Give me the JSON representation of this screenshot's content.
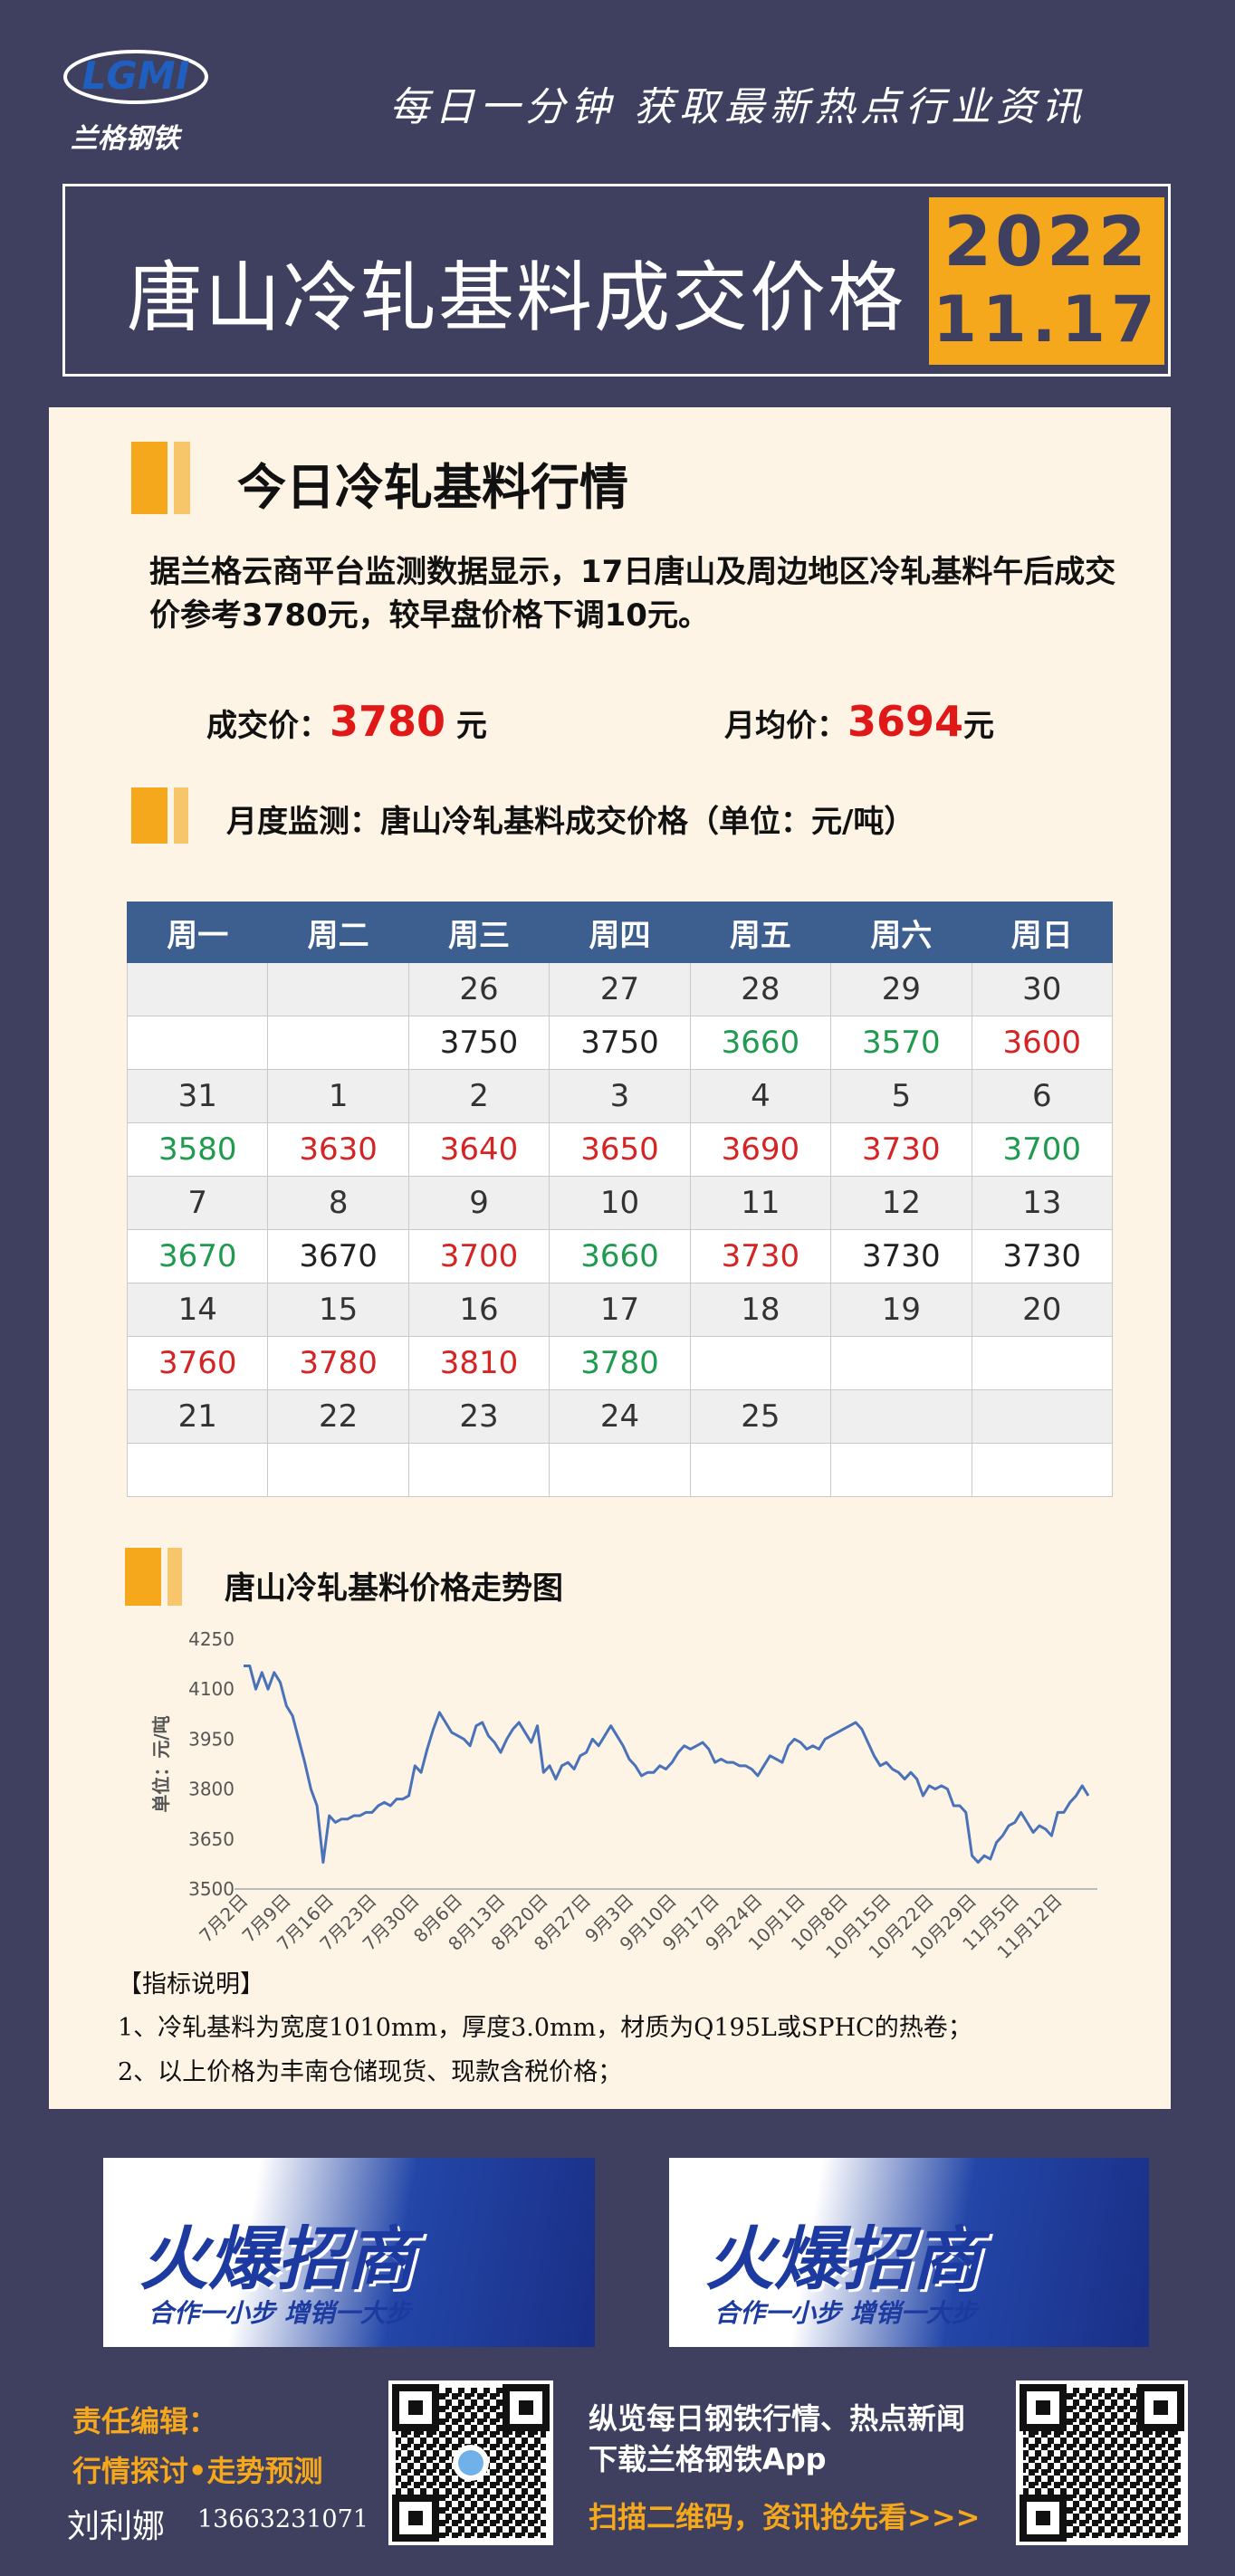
{
  "header": {
    "logo": "LGMI",
    "brand": "兰格钢铁",
    "slogan": "每日一分钟  获取最新热点行业资讯",
    "title": "唐山冷轧基料成交价格",
    "year": "2022",
    "date": "11.17"
  },
  "market": {
    "heading": "今日冷轧基料行情",
    "paragraph": "据兰格云商平台监测数据显示，17日唐山及周边地区冷轧基料午后成交价参考3780元，较早盘价格下调10元。",
    "deal_label": "成交价：",
    "deal_value": 3780,
    "deal_unit": "元",
    "avg_label": "月均价：",
    "avg_value": 3694,
    "avg_unit": "元"
  },
  "monitor": {
    "heading": "月度监测：唐山冷轧基料成交价格（单位：元/吨）",
    "headers": [
      "周一",
      "周二",
      "周三",
      "周四",
      "周五",
      "周六",
      "周日"
    ],
    "weeks": [
      {
        "days": [
          null,
          null,
          26,
          27,
          28,
          29,
          30
        ],
        "prices": [
          null,
          null,
          3750,
          3750,
          3660,
          3570,
          3600
        ],
        "colors": [
          null,
          null,
          "#222222",
          "#222222",
          "#1f9a4e",
          "#1f9a4e",
          "#d42424"
        ]
      },
      {
        "days": [
          31,
          1,
          2,
          3,
          4,
          5,
          6
        ],
        "prices": [
          3580,
          3630,
          3640,
          3650,
          3690,
          3730,
          3700
        ],
        "colors": [
          "#1f9a4e",
          "#d42424",
          "#d42424",
          "#d42424",
          "#d42424",
          "#d42424",
          "#1f9a4e"
        ]
      },
      {
        "days": [
          7,
          8,
          9,
          10,
          11,
          12,
          13
        ],
        "prices": [
          3670,
          3670,
          3700,
          3660,
          3730,
          3730,
          3730
        ],
        "colors": [
          "#1f9a4e",
          "#222222",
          "#d42424",
          "#1f9a4e",
          "#d42424",
          "#222222",
          "#222222"
        ]
      },
      {
        "days": [
          14,
          15,
          16,
          17,
          18,
          19,
          20
        ],
        "prices": [
          3760,
          3780,
          3810,
          3780,
          null,
          null,
          null
        ],
        "colors": [
          "#d42424",
          "#d42424",
          "#d42424",
          "#1f9a4e",
          null,
          null,
          null
        ]
      },
      {
        "days": [
          21,
          22,
          23,
          24,
          25,
          null,
          null
        ],
        "prices": [
          null,
          null,
          null,
          null,
          null,
          null,
          null
        ],
        "colors": [
          null,
          null,
          null,
          null,
          null,
          null,
          null
        ]
      }
    ]
  },
  "chart_data": {
    "type": "line",
    "title": "唐山冷轧基料价格走势图",
    "y_label": "单位：元/吨",
    "categories": [
      "7月2日",
      null,
      null,
      null,
      null,
      null,
      null,
      "7月9日",
      null,
      null,
      null,
      null,
      null,
      null,
      "7月16日",
      null,
      null,
      null,
      null,
      null,
      null,
      "7月23日",
      null,
      null,
      null,
      null,
      null,
      null,
      "7月30日",
      null,
      null,
      null,
      null,
      null,
      null,
      "8月6日",
      null,
      null,
      null,
      null,
      null,
      null,
      "8月13日",
      null,
      null,
      null,
      null,
      null,
      null,
      "8月20日",
      null,
      null,
      null,
      null,
      null,
      null,
      "8月27日",
      null,
      null,
      null,
      null,
      null,
      null,
      "9月3日",
      null,
      null,
      null,
      null,
      null,
      null,
      "9月10日",
      null,
      null,
      null,
      null,
      null,
      null,
      "9月17日",
      null,
      null,
      null,
      null,
      null,
      null,
      "9月24日",
      null,
      null,
      null,
      null,
      null,
      null,
      "10月1日",
      null,
      null,
      null,
      null,
      null,
      null,
      "10月8日",
      null,
      null,
      null,
      null,
      null,
      null,
      "10月15日",
      null,
      null,
      null,
      null,
      null,
      null,
      "10月22日",
      null,
      null,
      null,
      null,
      null,
      null,
      "10月29日",
      null,
      null,
      null,
      null,
      null,
      null,
      "11月5日",
      null,
      null,
      null,
      null,
      null,
      null,
      "11月12日",
      null,
      null,
      null,
      null,
      null
    ],
    "series": [
      {
        "name": "唐山冷轧基料",
        "color": "#4a72b8",
        "values": [
          4170,
          4170,
          4100,
          4150,
          4100,
          4150,
          4120,
          4050,
          4020,
          3950,
          3880,
          3800,
          3750,
          3580,
          3720,
          3700,
          3710,
          3710,
          3720,
          3720,
          3730,
          3730,
          3750,
          3760,
          3750,
          3770,
          3770,
          3780,
          3870,
          3850,
          3920,
          3980,
          4030,
          4000,
          3970,
          3960,
          3950,
          3930,
          3990,
          4000,
          3960,
          3940,
          3910,
          3950,
          3980,
          4000,
          3970,
          3940,
          3990,
          3850,
          3870,
          3830,
          3870,
          3880,
          3860,
          3900,
          3910,
          3950,
          3930,
          3960,
          3990,
          3960,
          3930,
          3890,
          3870,
          3840,
          3850,
          3850,
          3870,
          3860,
          3880,
          3910,
          3930,
          3920,
          3930,
          3940,
          3920,
          3880,
          3890,
          3880,
          3880,
          3870,
          3870,
          3860,
          3840,
          3870,
          3900,
          3890,
          3880,
          3930,
          3950,
          3940,
          3920,
          3930,
          3920,
          3950,
          3960,
          3970,
          3980,
          3990,
          4000,
          3980,
          3940,
          3900,
          3870,
          3880,
          3860,
          3850,
          3830,
          3850,
          3830,
          3780,
          3810,
          3800,
          3810,
          3800,
          3750,
          3750,
          3730,
          3600,
          3580,
          3600,
          3590,
          3640,
          3660,
          3690,
          3700,
          3730,
          3700,
          3670,
          3690,
          3680,
          3660,
          3730,
          3730,
          3760,
          3780,
          3810,
          3780
        ]
      }
    ],
    "ylim": [
      3500,
      4250
    ],
    "yticks": [
      3500,
      3650,
      3800,
      3950,
      4100,
      4250
    ],
    "grid": false
  },
  "notes": {
    "title": "【指标说明】",
    "items": [
      "1、冷轧基料为宽度1010mm，厚度3.0mm，材质为Q195L或SPHC的热卷；",
      "2、以上价格为丰南仓储现货、现款含税价格；"
    ]
  },
  "banners": [
    {
      "title": "火爆招商",
      "slogan": "合作一小步  增销一大步"
    },
    {
      "title": "火爆招商",
      "slogan": "合作一小步  增销一大步"
    }
  ],
  "footer": {
    "editor_label": "责任编辑：",
    "editor_topic": "行情探讨•走势预测",
    "editor_name": "刘利娜",
    "phone": "13663231071",
    "promo1": "纵览每日钢铁行情、热点新闻",
    "promo2": "下载兰格钢铁App",
    "promo3": "扫描二维码，资讯抢先看>>>"
  }
}
